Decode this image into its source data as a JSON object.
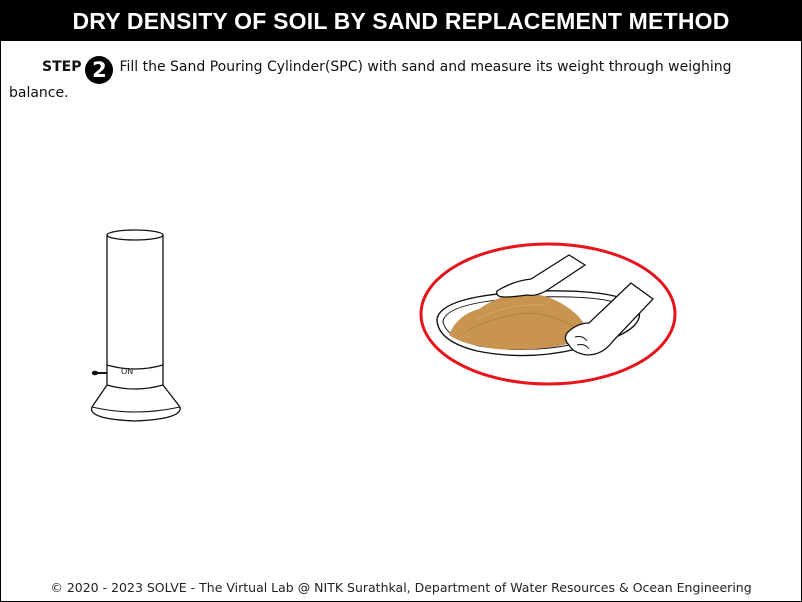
{
  "header": {
    "title": "DRY DENSITY OF SOIL BY SAND REPLACEMENT METHOD"
  },
  "step": {
    "label": "STEP",
    "number": "2",
    "instruction": "Fill the Sand Pouring Cylinder(SPC) with sand and measure its weight through weighing balance."
  },
  "cylinder": {
    "switch_label": "ON"
  },
  "highlight_color": "#e8141b",
  "sand_color": "#c8944f",
  "footer": {
    "text": "© 2020 - 2023 SOLVE - The Virtual Lab @ NITK Surathkal, Department of Water Resources & Ocean Engineering"
  }
}
